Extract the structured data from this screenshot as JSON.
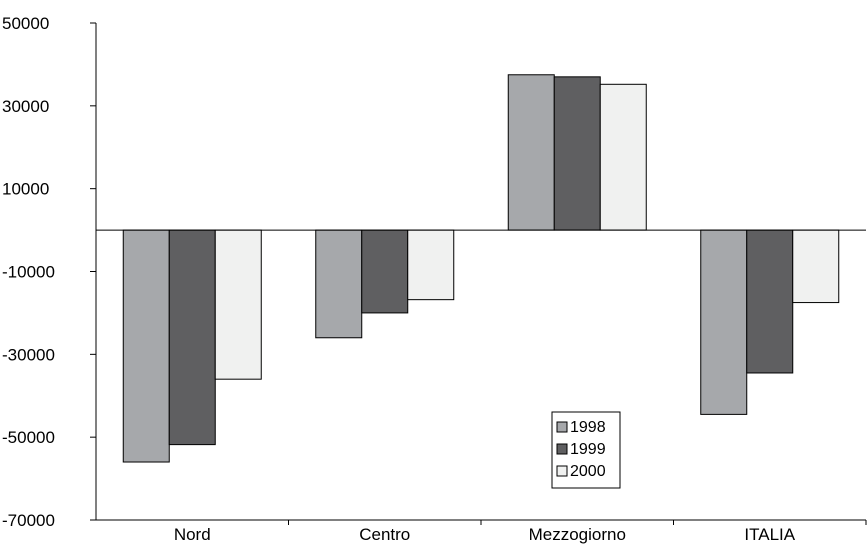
{
  "chart_data": {
    "type": "bar",
    "title": "",
    "xlabel": "",
    "ylabel": "",
    "ylim": [
      -70000,
      50000
    ],
    "y_ticks": [
      50000,
      30000,
      10000,
      -10000,
      -30000,
      -50000,
      -70000
    ],
    "y_tick_labels": [
      "50000",
      "30000",
      "10000",
      "-10000",
      "-30000",
      "-50000",
      "-70000"
    ],
    "categories": [
      "Nord",
      "Centro",
      "Mezzogiorno",
      "ITALIA"
    ],
    "series": [
      {
        "name": "1998",
        "color": "#a6a8ab",
        "values": [
          -56000,
          -26000,
          37500,
          -44500
        ]
      },
      {
        "name": "1999",
        "color": "#5f5f61",
        "values": [
          -51800,
          -20000,
          37000,
          -34500
        ]
      },
      {
        "name": "2000",
        "color": "#f0f1f0",
        "values": [
          -36000,
          -16800,
          35200,
          -17500
        ]
      }
    ],
    "grid": false,
    "legend": {
      "position": "bottom-center-inside"
    }
  }
}
